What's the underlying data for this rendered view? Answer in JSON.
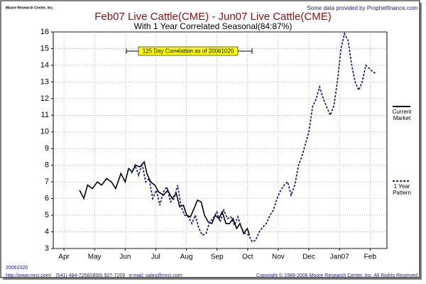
{
  "chart_data": {
    "type": "line",
    "title": "Feb07 Live Cattle(CME) - Jun07 Live Cattle(CME)",
    "subtitle": "With 1 Year Correlated Seasonal(84:87%)",
    "annotation": "125 Day Correlation as of 20061020",
    "source": "Some data provided by Prophetfinance.com",
    "logo": "Moore Research Center, Inc.",
    "date": "20061020",
    "footer": "http://www.mrci.com/   (541) 484-7256/(800) 927-7259   e-mail: sales@mrci.com",
    "copyright": "Copyright © 1989-2006 Moore Research Center, Inc. All Rights Reserved",
    "xlim": [
      -0.35,
      10.55
    ],
    "xticks": [
      {
        "value": 0,
        "label": "Apr"
      },
      {
        "value": 1,
        "label": "May"
      },
      {
        "value": 2,
        "label": "Jun"
      },
      {
        "value": 3,
        "label": "Jul"
      },
      {
        "value": 4,
        "label": "Aug"
      },
      {
        "value": 5,
        "label": "Sep"
      },
      {
        "value": 6,
        "label": "Oct"
      },
      {
        "value": 7,
        "label": "Nov"
      },
      {
        "value": 8,
        "label": "Dec"
      },
      {
        "value": 9,
        "label": "Jan07"
      },
      {
        "value": 10,
        "label": "Feb"
      }
    ],
    "ylim": [
      3,
      16
    ],
    "yticks": [
      3,
      4,
      5,
      6,
      7,
      8,
      9,
      10,
      11,
      12,
      13,
      14,
      15,
      16
    ],
    "grid": true,
    "series": [
      {
        "name": "Current Market",
        "color": "#000000",
        "dash": false,
        "x": [
          0.51,
          0.65,
          0.77,
          0.93,
          1.09,
          1.23,
          1.39,
          1.55,
          1.69,
          1.86,
          2.0,
          2.11,
          2.23,
          2.34,
          2.48,
          2.62,
          2.71,
          2.83,
          2.97,
          3.09,
          3.25,
          3.39,
          3.53,
          3.67,
          3.78,
          3.9,
          4.01,
          4.13,
          4.25,
          4.36,
          4.48,
          4.59,
          4.71,
          4.83,
          4.94,
          5.06,
          5.17,
          5.29,
          5.41,
          5.52,
          5.64,
          5.75,
          5.87,
          5.99,
          6.06
        ],
        "values": [
          6.5,
          6.0,
          6.8,
          6.6,
          7.0,
          6.8,
          7.2,
          7.0,
          6.6,
          7.5,
          7.0,
          7.8,
          7.6,
          8.0,
          7.9,
          8.2,
          7.5,
          7.0,
          6.8,
          6.4,
          6.2,
          6.5,
          6.0,
          6.3,
          5.5,
          5.6,
          5.0,
          4.9,
          5.4,
          5.9,
          5.8,
          5.0,
          4.6,
          4.5,
          5.0,
          4.8,
          5.2,
          4.5,
          4.5,
          4.8,
          4.2,
          4.5,
          3.9,
          4.2,
          3.8
        ]
      },
      {
        "name": "1 Year Pattern",
        "color": "#1a237e",
        "dash": true,
        "x": [
          2.2,
          2.32,
          2.44,
          2.55,
          2.67,
          2.78,
          2.9,
          3.02,
          3.13,
          3.25,
          3.36,
          3.48,
          3.6,
          3.71,
          3.83,
          3.94,
          4.06,
          4.18,
          4.29,
          4.41,
          4.52,
          4.64,
          4.76,
          4.87,
          4.99,
          5.1,
          5.22,
          5.34,
          5.45,
          5.57,
          5.68,
          5.8,
          5.92,
          6.03,
          6.15,
          6.26,
          6.38,
          6.5,
          6.61,
          6.73,
          6.84,
          6.96,
          7.08,
          7.19,
          7.31,
          7.42,
          7.54,
          7.66,
          7.77,
          7.89,
          8.0,
          8.12,
          8.24,
          8.35,
          8.47,
          8.58,
          8.7,
          8.82,
          8.93,
          9.05,
          9.16,
          9.28,
          9.4,
          9.51,
          9.63,
          9.74,
          9.86,
          9.98,
          10.09,
          10.21
        ],
        "values": [
          7.5,
          8.0,
          7.4,
          8.1,
          7.0,
          7.2,
          6.0,
          6.5,
          5.6,
          6.4,
          6.7,
          5.8,
          6.0,
          6.8,
          5.5,
          5.0,
          4.9,
          4.5,
          5.0,
          4.2,
          3.8,
          3.9,
          4.6,
          4.8,
          5.2,
          4.6,
          5.3,
          4.8,
          4.9,
          4.4,
          4.9,
          4.2,
          3.9,
          3.8,
          3.4,
          3.5,
          4.0,
          4.3,
          4.5,
          5.0,
          5.3,
          6.0,
          6.5,
          6.8,
          7.0,
          6.2,
          6.8,
          8.0,
          8.5,
          9.3,
          10.0,
          11.5,
          12.0,
          12.7,
          12.0,
          11.5,
          11.0,
          11.6,
          13.0,
          15.0,
          15.9,
          15.5,
          14.0,
          13.0,
          12.5,
          13.0,
          14.0,
          13.8,
          13.6,
          13.5
        ]
      }
    ]
  }
}
